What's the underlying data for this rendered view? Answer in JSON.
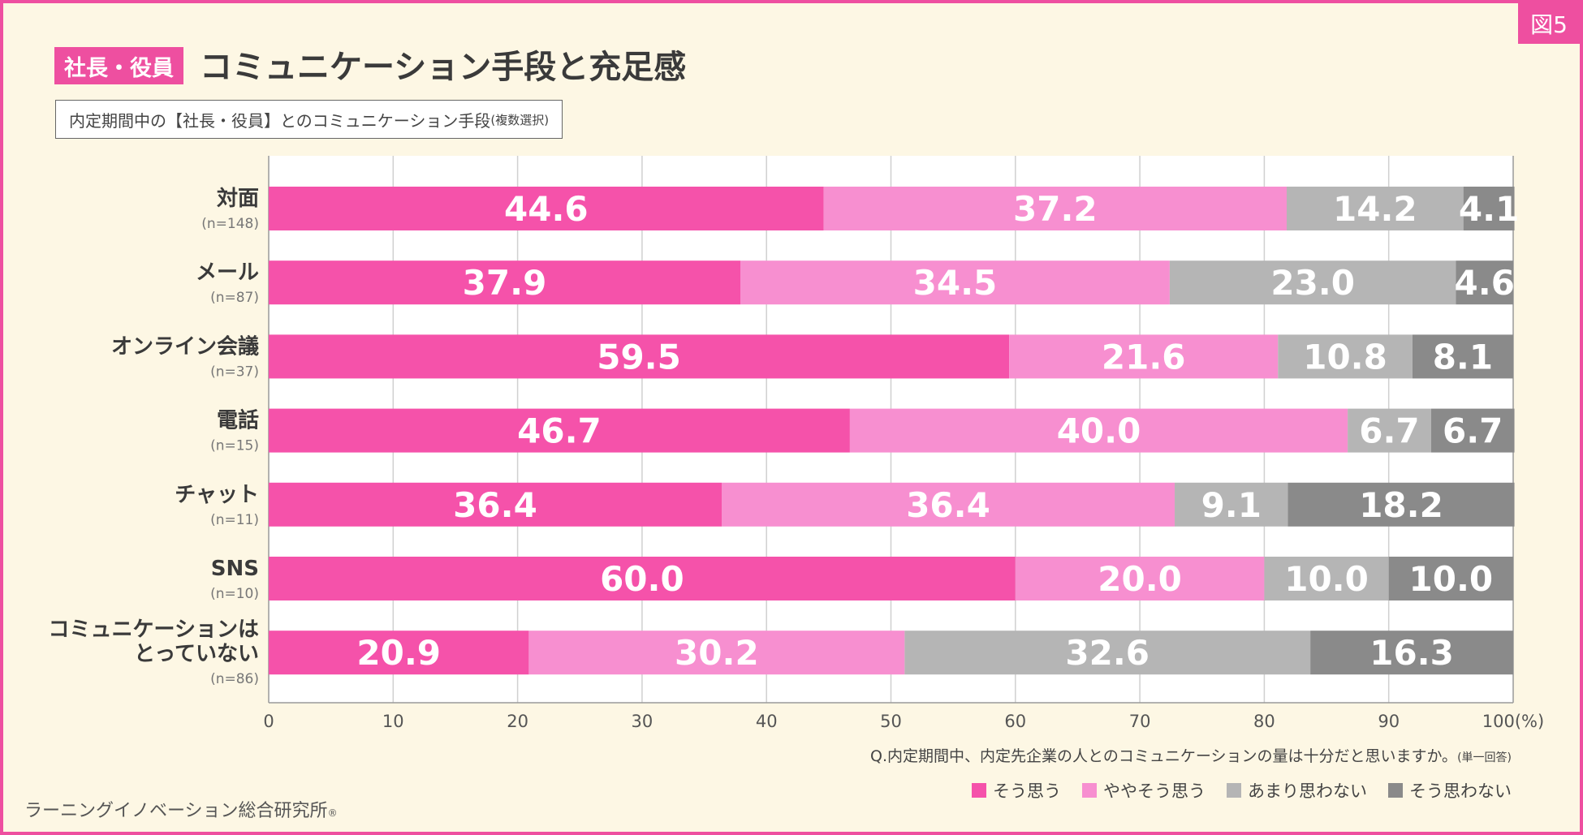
{
  "header": {
    "figure_badge": "図5",
    "tag": "社長・役員",
    "title": "コミュニケーション手段と充足感",
    "subtitle": "内定期間中の【社長・役員】とのコミュニケーション手段",
    "subtitle_note": "(複数選択)"
  },
  "question": {
    "text": "Q.内定期間中、内定先企業の人とのコミュニケーションの量は十分だと思いますか。",
    "note": "(単一回答)"
  },
  "source": {
    "text": "ラーニングイノベーション総合研究所",
    "mark": "®"
  },
  "colors": {
    "accent": "#ee4fa0",
    "series": [
      "#f552aa",
      "#f78fd0",
      "#b5b5b5",
      "#8a8a8a"
    ]
  },
  "chart_data": {
    "type": "bar",
    "orientation": "horizontal",
    "stacked": true,
    "categories": [
      {
        "label": [
          "対面"
        ],
        "n": "(n=148)"
      },
      {
        "label": [
          "メール"
        ],
        "n": "(n=87)"
      },
      {
        "label": [
          "オンライン会議"
        ],
        "n": "(n=37)"
      },
      {
        "label": [
          "電話"
        ],
        "n": "(n=15)"
      },
      {
        "label": [
          "チャット"
        ],
        "n": "(n=11)"
      },
      {
        "label": [
          "SNS"
        ],
        "n": "(n=10)"
      },
      {
        "label": [
          "コミュニケーションは",
          "とっていない"
        ],
        "n": "(n=86)"
      }
    ],
    "series": [
      {
        "name": "そう思う",
        "values": [
          44.6,
          37.9,
          59.5,
          46.7,
          36.4,
          60.0,
          20.9
        ]
      },
      {
        "name": "ややそう思う",
        "values": [
          37.2,
          34.5,
          21.6,
          40.0,
          36.4,
          20.0,
          30.2
        ]
      },
      {
        "name": "あまり思わない",
        "values": [
          14.2,
          23.0,
          10.8,
          6.7,
          9.1,
          10.0,
          32.6
        ]
      },
      {
        "name": "そう思わない",
        "values": [
          4.1,
          4.6,
          8.1,
          6.7,
          18.2,
          10.0,
          16.3
        ]
      }
    ],
    "xlim": [
      0,
      100
    ],
    "xticks": [
      0,
      10,
      20,
      30,
      40,
      50,
      60,
      70,
      80,
      90,
      100
    ],
    "xtick_labels": [
      "0",
      "10",
      "20",
      "30",
      "40",
      "50",
      "60",
      "70",
      "80",
      "90",
      "100(%)"
    ],
    "grid": true,
    "outside_labels": [
      "4.1",
      "4.6"
    ]
  }
}
